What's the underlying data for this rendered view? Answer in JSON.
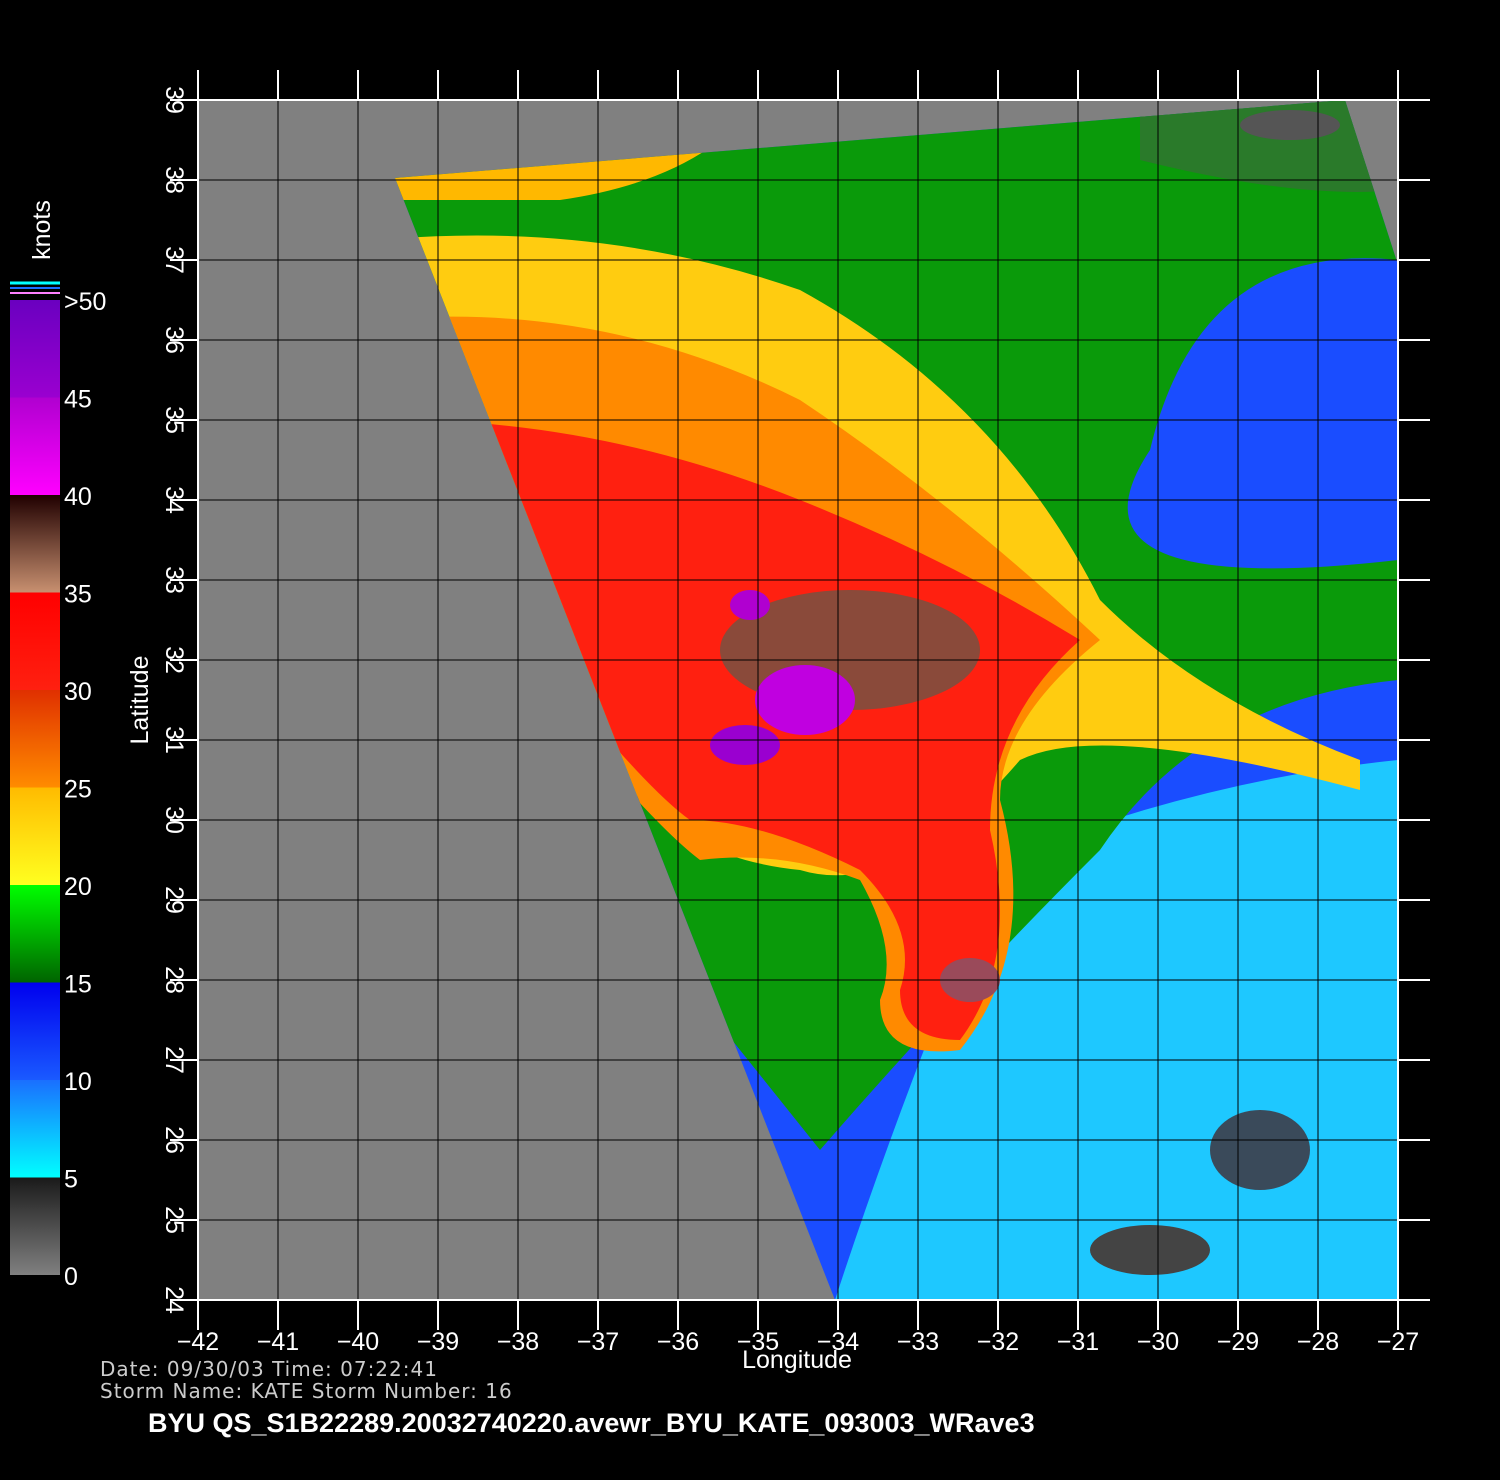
{
  "map": {
    "title": "BYU  QS_S1B22289.20032740220.avewr_BYU_KATE_093003_WRave3",
    "info": [
      "Date: 09/30/03   Time: 07:22:41",
      "Storm  Name:  KATE    Storm  Number:  16"
    ],
    "xaxis": {
      "label": "Longitude",
      "lim": [
        -42,
        -27
      ],
      "ticks": [
        {
          "value": -42,
          "label": "−42"
        },
        {
          "value": -41,
          "label": "−41"
        },
        {
          "value": -40,
          "label": "−40"
        },
        {
          "value": -39,
          "label": "−39"
        },
        {
          "value": -38,
          "label": "−38"
        },
        {
          "value": -37,
          "label": "−37"
        },
        {
          "value": -36,
          "label": "−36"
        },
        {
          "value": -35,
          "label": "−35"
        },
        {
          "value": -34,
          "label": "−34"
        },
        {
          "value": -33,
          "label": "−33"
        },
        {
          "value": -32,
          "label": "−32"
        },
        {
          "value": -31,
          "label": "−31"
        },
        {
          "value": -30,
          "label": "−30"
        },
        {
          "value": -29,
          "label": "−29"
        },
        {
          "value": -28,
          "label": "−28"
        },
        {
          "value": -27,
          "label": "−27"
        }
      ]
    },
    "yaxis": {
      "label": "Latitude",
      "lim": [
        24,
        39
      ],
      "ticks": [
        24,
        25,
        26,
        27,
        28,
        29,
        30,
        31,
        32,
        33,
        34,
        35,
        36,
        37,
        38,
        39
      ]
    },
    "colorbar": {
      "label": "knots",
      "lim": [
        0,
        50
      ],
      "ticks": [
        0,
        5,
        10,
        15,
        20,
        25,
        30,
        35,
        40,
        45,
        {
          "value": 50,
          "label": ">50"
        }
      ]
    }
  }
}
